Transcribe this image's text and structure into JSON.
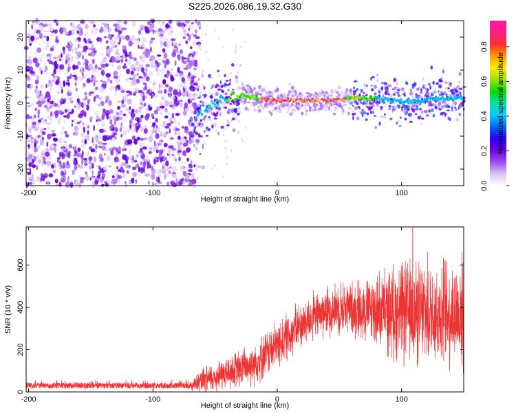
{
  "title": "S225.2026.086.19.32.G30",
  "chart_data": [
    {
      "type": "heatmap",
      "name": "spectrogram",
      "xlabel": "Height of straight line (km)",
      "ylabel": "Frequency (Hz)",
      "xlim": [
        -202,
        150
      ],
      "ylim": [
        -25,
        25
      ],
      "xticks": [
        -200,
        -100,
        0,
        100
      ],
      "xtick_labels": [
        "-200",
        "-100",
        "0",
        "100"
      ],
      "yticks": [
        -20,
        -10,
        0,
        10,
        20
      ],
      "ytick_labels": [
        "-20",
        "-10",
        "0",
        "10",
        "20"
      ],
      "colorbar": {
        "label": "Normalized spectral amplitude",
        "range": [
          0,
          0.95
        ],
        "ticks": [
          0.0,
          0.2,
          0.4,
          0.6,
          0.8
        ],
        "tick_labels": [
          "0.0",
          "0.2",
          "0.4",
          "0.6",
          "0.8"
        ],
        "colors": [
          "#ffffff",
          "#d9c4f2",
          "#9a4ef0",
          "#6a00e0",
          "#2a00ff",
          "#0066ff",
          "#00ccff",
          "#00e0a0",
          "#00e000",
          "#a0e000",
          "#ffee00",
          "#ff9900",
          "#ff3030",
          "#ff2080",
          "#ff1aa0"
        ]
      },
      "noise_region_km": [
        -202,
        -65
      ],
      "empty_region_km": [
        -65,
        -30
      ],
      "signal_track": [
        {
          "x": -65,
          "f": -3.5
        },
        {
          "x": -55,
          "f": -1.0
        },
        {
          "x": -45,
          "f": 1.5
        },
        {
          "x": -30,
          "f": 2.5
        },
        {
          "x": -15,
          "f": 1.5
        },
        {
          "x": 0,
          "f": 0.8
        },
        {
          "x": 20,
          "f": 0.8
        },
        {
          "x": 45,
          "f": 0.8
        },
        {
          "x": 60,
          "f": 1.5
        },
        {
          "x": 80,
          "f": 1.5
        },
        {
          "x": 100,
          "f": 0.5
        },
        {
          "x": 120,
          "f": 1.0
        },
        {
          "x": 150,
          "f": 1.5
        }
      ]
    },
    {
      "type": "line",
      "name": "snr",
      "xlabel": "Height of straight line (km)",
      "ylabel": "SNR (10 * v/v)",
      "xlim": [
        -202,
        150
      ],
      "ylim": [
        0,
        780
      ],
      "xticks": [
        -200,
        -100,
        0,
        100
      ],
      "xtick_labels": [
        "-200",
        "-100",
        "0",
        "100"
      ],
      "yticks": [
        0,
        200,
        400,
        600
      ],
      "ytick_labels": [
        "0",
        "200",
        "400",
        "600"
      ],
      "color": "#ee3333",
      "envelope_mean": [
        {
          "x": -202,
          "y": 30
        },
        {
          "x": -70,
          "y": 30
        },
        {
          "x": -60,
          "y": 50
        },
        {
          "x": -40,
          "y": 90
        },
        {
          "x": -20,
          "y": 130
        },
        {
          "x": 0,
          "y": 220
        },
        {
          "x": 15,
          "y": 300
        },
        {
          "x": 30,
          "y": 360
        },
        {
          "x": 50,
          "y": 400
        },
        {
          "x": 70,
          "y": 390
        },
        {
          "x": 90,
          "y": 380
        },
        {
          "x": 110,
          "y": 370
        },
        {
          "x": 130,
          "y": 380
        },
        {
          "x": 150,
          "y": 370
        }
      ],
      "envelope_spread": [
        {
          "x": -202,
          "y": 18
        },
        {
          "x": -70,
          "y": 22
        },
        {
          "x": -60,
          "y": 60
        },
        {
          "x": -20,
          "y": 100
        },
        {
          "x": 0,
          "y": 110
        },
        {
          "x": 30,
          "y": 110
        },
        {
          "x": 60,
          "y": 130
        },
        {
          "x": 80,
          "y": 170
        },
        {
          "x": 100,
          "y": 240
        },
        {
          "x": 150,
          "y": 260
        }
      ],
      "peak": {
        "x": 109,
        "y": 780
      }
    }
  ]
}
